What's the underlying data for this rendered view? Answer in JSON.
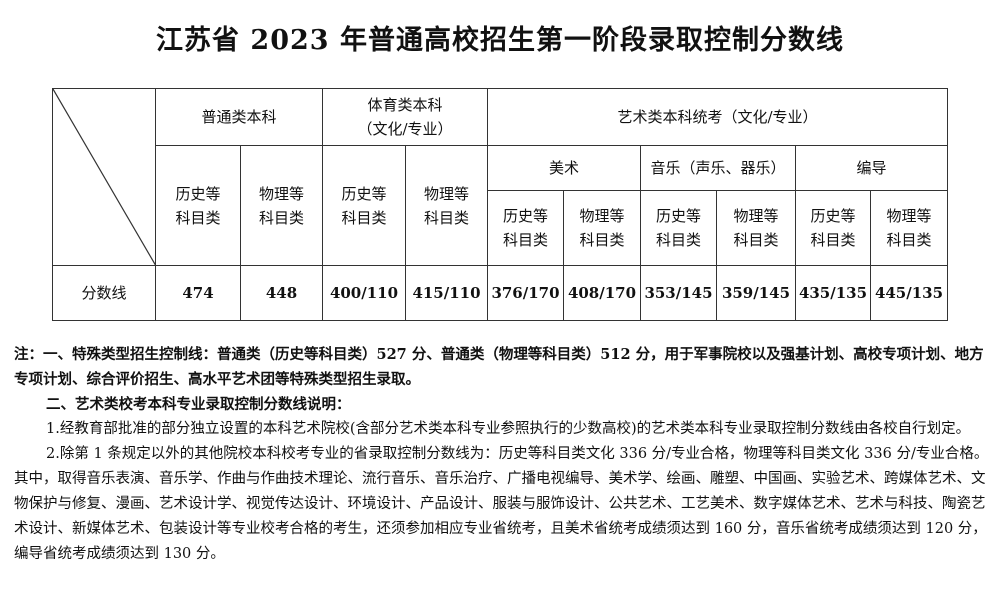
{
  "title": "江苏省 2023 年普通高校招生第一阶段录取控制分数线",
  "table": {
    "general": "普通类本科",
    "sports": "体育类本科\n（文化/专业）",
    "art": "艺术类本科统考（文化/专业）",
    "fine_arts": "美术",
    "music": "音乐（声乐、器乐）",
    "directing": "编导",
    "history": "历史等\n科目类",
    "physics": "物理等\n科目类",
    "row_label": "分数线",
    "scores": [
      "474",
      "448",
      "400/110",
      "415/110",
      "376/170",
      "408/170",
      "353/145",
      "359/145",
      "435/135",
      "445/135"
    ]
  },
  "notes": {
    "p1": "注：一、特殊类型招生控制线：普通类（历史等科目类）527 分、普通类（物理等科目类）512 分，用于军事院校以及强基计划、高校专项计划、地方专项计划、综合评价招生、高水平艺术团等特殊类型招生录取。",
    "p2": "二、艺术类校考本科专业录取控制分数线说明：",
    "p3": "1.经教育部批准的部分独立设置的本科艺术院校(含部分艺术类本科专业参照执行的少数高校)的艺术类本科专业录取控制分数线由各校自行划定。",
    "p4": "2.除第 1 条规定以外的其他院校本科校考专业的省录取控制分数线为：历史等科目类文化 336 分/专业合格，物理等科目类文化 336 分/专业合格。其中，取得音乐表演、音乐学、作曲与作曲技术理论、流行音乐、音乐治疗、广播电视编导、美术学、绘画、雕塑、中国画、实验艺术、跨媒体艺术、文物保护与修复、漫画、艺术设计学、视觉传达设计、环境设计、产品设计、服装与服饰设计、公共艺术、工艺美术、数字媒体艺术、艺术与科技、陶瓷艺术设计、新媒体艺术、包装设计等专业校考合格的考生，还须参加相应专业省统考，且美术省统考成绩须达到 160 分，音乐省统考成绩须达到 120 分，编导省统考成绩须达到 130 分。"
  }
}
